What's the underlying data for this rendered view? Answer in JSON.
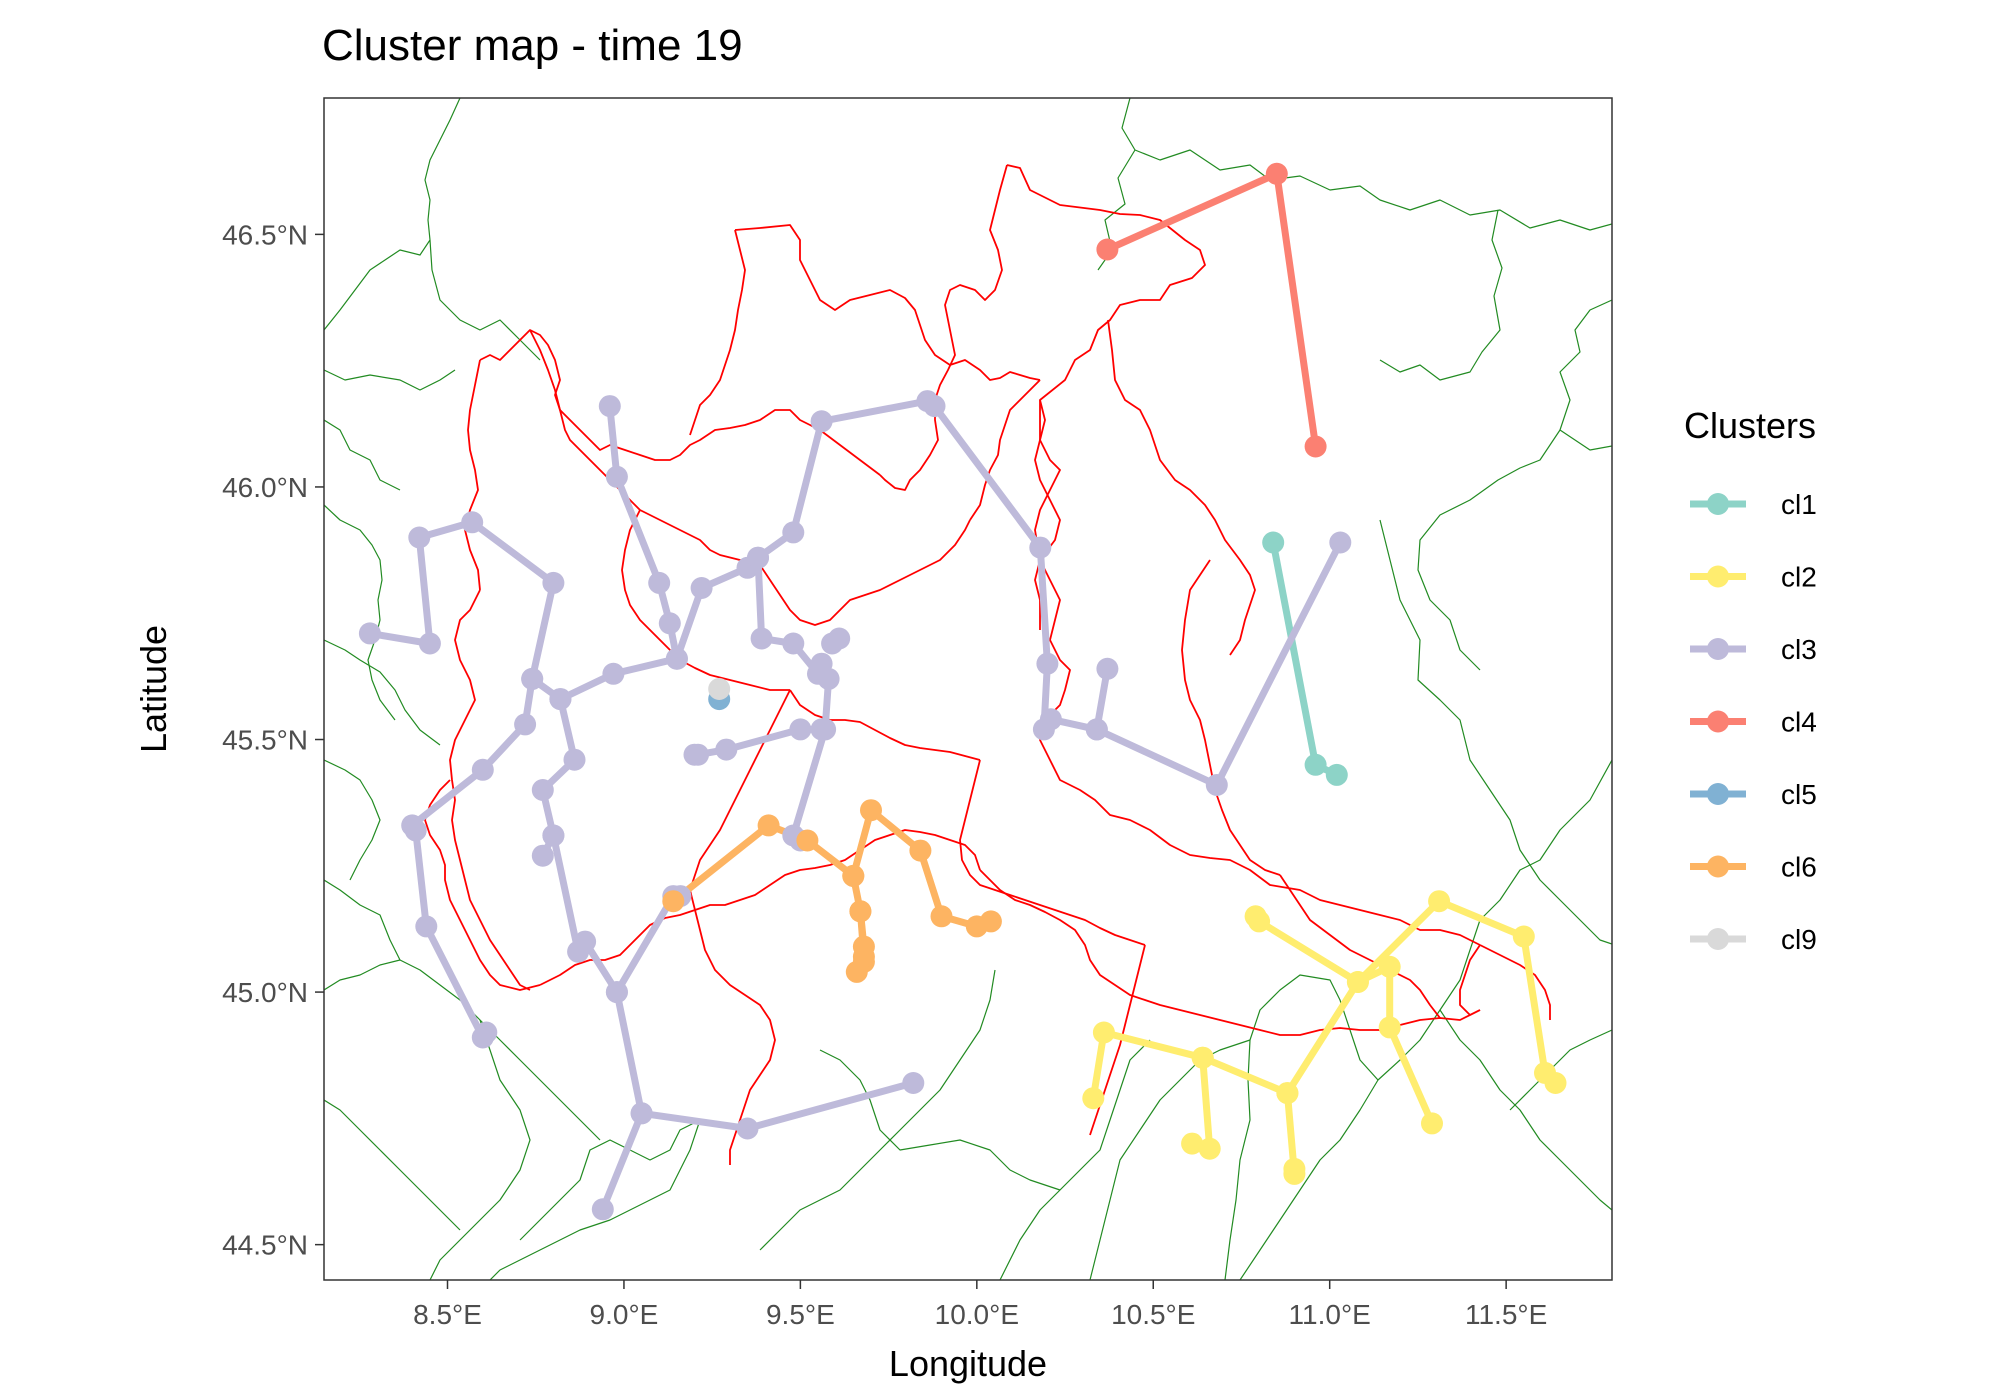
{
  "chart_data": {
    "type": "scatter",
    "title": "Cluster map - time 19",
    "xlabel": "Longitude",
    "ylabel": "Latitude",
    "xlim": [
      8.15,
      11.8
    ],
    "ylim": [
      44.43,
      46.77
    ],
    "x_ticks": [
      8.5,
      9.0,
      9.5,
      10.0,
      10.5,
      11.0,
      11.5
    ],
    "x_tick_labels": [
      "8.5°E",
      "9.0°E",
      "9.5°E",
      "10.0°E",
      "10.5°E",
      "11.0°E",
      "11.5°E"
    ],
    "y_ticks": [
      44.5,
      45.0,
      45.5,
      46.0,
      46.5
    ],
    "y_tick_labels": [
      "44.5°N",
      "45.0°N",
      "45.5°N",
      "46.0°N",
      "46.5°N"
    ],
    "grid": false,
    "legend": {
      "title": "Clusters",
      "position": "right"
    },
    "series": [
      {
        "name": "cl1",
        "color": "#8dd3c7",
        "segments": [
          [
            [
              10.84,
              45.89
            ],
            [
              10.96,
              45.45
            ],
            [
              11.02,
              45.43
            ]
          ]
        ]
      },
      {
        "name": "cl2",
        "color": "#ffed6f",
        "segments": [
          [
            [
              10.79,
              45.15
            ],
            [
              10.8,
              45.14
            ],
            [
              11.08,
              45.02
            ],
            [
              11.17,
              45.05
            ],
            [
              11.17,
              44.93
            ],
            [
              11.29,
              44.74
            ]
          ],
          [
            [
              10.33,
              44.79
            ],
            [
              10.36,
              44.92
            ],
            [
              10.64,
              44.87
            ],
            [
              10.88,
              44.8
            ],
            [
              11.08,
              45.02
            ],
            [
              11.31,
              45.18
            ],
            [
              11.55,
              45.11
            ],
            [
              11.61,
              44.84
            ],
            [
              11.64,
              44.82
            ]
          ],
          [
            [
              10.61,
              44.7
            ],
            [
              10.66,
              44.69
            ],
            [
              10.64,
              44.87
            ]
          ],
          [
            [
              10.88,
              44.8
            ],
            [
              10.9,
              44.64
            ],
            [
              10.9,
              44.65
            ]
          ]
        ]
      },
      {
        "name": "cl3",
        "color": "#bebada",
        "segments": [
          [
            [
              8.28,
              45.71
            ],
            [
              8.45,
              45.69
            ],
            [
              8.42,
              45.9
            ],
            [
              8.57,
              45.93
            ],
            [
              8.8,
              45.81
            ],
            [
              8.74,
              45.62
            ],
            [
              8.72,
              45.53
            ],
            [
              8.6,
              45.44
            ],
            [
              8.4,
              45.33
            ],
            [
              8.41,
              45.32
            ],
            [
              8.44,
              45.13
            ],
            [
              8.6,
              44.91
            ],
            [
              8.61,
              44.92
            ]
          ],
          [
            [
              8.74,
              45.62
            ],
            [
              8.82,
              45.58
            ],
            [
              8.86,
              45.46
            ],
            [
              8.77,
              45.4
            ],
            [
              8.8,
              45.31
            ],
            [
              8.87,
              45.08
            ],
            [
              8.89,
              45.1
            ],
            [
              8.98,
              45.0
            ],
            [
              9.05,
              44.76
            ],
            [
              8.94,
              44.57
            ]
          ],
          [
            [
              8.82,
              45.58
            ],
            [
              8.97,
              45.63
            ],
            [
              9.15,
              45.66
            ],
            [
              9.13,
              45.73
            ],
            [
              9.1,
              45.81
            ],
            [
              8.98,
              46.02
            ],
            [
              8.96,
              46.16
            ]
          ],
          [
            [
              9.15,
              45.66
            ],
            [
              9.22,
              45.8
            ],
            [
              9.35,
              45.84
            ],
            [
              9.38,
              45.86
            ],
            [
              9.48,
              45.91
            ],
            [
              9.56,
              46.13
            ],
            [
              9.86,
              46.17
            ],
            [
              9.88,
              46.16
            ],
            [
              10.18,
              45.88
            ],
            [
              10.2,
              45.65
            ],
            [
              10.19,
              45.52
            ],
            [
              10.21,
              45.54
            ],
            [
              10.34,
              45.52
            ],
            [
              10.37,
              45.64
            ]
          ],
          [
            [
              10.34,
              45.52
            ],
            [
              10.68,
              45.41
            ],
            [
              11.03,
              45.89
            ]
          ],
          [
            [
              9.38,
              45.86
            ],
            [
              9.39,
              45.7
            ],
            [
              9.48,
              45.69
            ],
            [
              9.55,
              45.63
            ],
            [
              9.56,
              45.65
            ],
            [
              9.58,
              45.62
            ],
            [
              9.57,
              45.52
            ],
            [
              9.48,
              45.31
            ],
            [
              9.5,
              45.3
            ]
          ],
          [
            [
              9.2,
              45.47
            ],
            [
              9.21,
              45.47
            ],
            [
              9.29,
              45.48
            ],
            [
              9.5,
              45.52
            ],
            [
              9.56,
              45.52
            ]
          ],
          [
            [
              9.59,
              45.69
            ],
            [
              9.61,
              45.7
            ]
          ],
          [
            [
              8.98,
              45.0
            ],
            [
              9.14,
              45.19
            ],
            [
              9.16,
              45.19
            ]
          ],
          [
            [
              9.05,
              44.76
            ],
            [
              9.35,
              44.73
            ],
            [
              9.82,
              44.82
            ]
          ],
          [
            [
              8.77,
              45.27
            ],
            [
              8.8,
              45.31
            ]
          ]
        ]
      },
      {
        "name": "cl4",
        "color": "#fb8072",
        "segments": [
          [
            [
              10.37,
              46.47
            ],
            [
              10.85,
              46.62
            ],
            [
              10.96,
              46.08
            ]
          ]
        ]
      },
      {
        "name": "cl5",
        "color": "#80b1d3",
        "segments": [
          [
            [
              9.27,
              45.58
            ]
          ]
        ]
      },
      {
        "name": "cl6",
        "color": "#fdb462",
        "segments": [
          [
            [
              9.14,
              45.18
            ],
            [
              9.41,
              45.33
            ],
            [
              9.52,
              45.3
            ],
            [
              9.65,
              45.23
            ],
            [
              9.67,
              45.16
            ],
            [
              9.68,
              45.09
            ],
            [
              9.66,
              45.04
            ],
            [
              9.68,
              45.06
            ]
          ],
          [
            [
              9.65,
              45.23
            ],
            [
              9.7,
              45.36
            ],
            [
              9.84,
              45.28
            ],
            [
              9.9,
              45.15
            ],
            [
              10.0,
              45.13
            ],
            [
              10.04,
              45.14
            ]
          ],
          [
            [
              9.67,
              45.16
            ],
            [
              9.68,
              45.07
            ]
          ]
        ]
      },
      {
        "name": "cl9",
        "color": "#d9d9d9",
        "segments": [
          [
            [
              9.27,
              45.6
            ]
          ]
        ]
      }
    ],
    "basemap": {
      "region_border_color": "#ff0000",
      "province_border_color": "#228b22"
    }
  }
}
